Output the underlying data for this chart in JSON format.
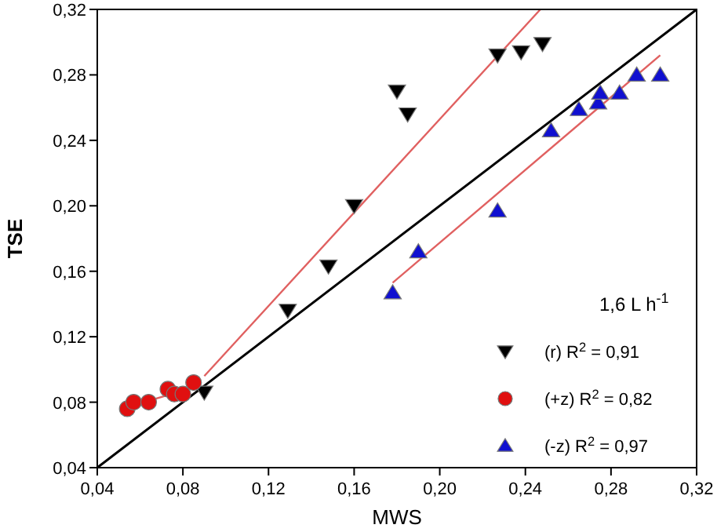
{
  "chart_data": {
    "type": "scatter",
    "xlabel": "MWS",
    "ylabel": "TSE",
    "legend_title": "1,6 L h$^{-1}$",
    "legend": "bottom right",
    "grid": false,
    "xlim": [
      0.04,
      0.32
    ],
    "ylim": [
      0.04,
      0.32
    ],
    "xticks": [
      {
        "value": 0.04,
        "label": "0,04"
      },
      {
        "value": 0.08,
        "label": "0,08"
      },
      {
        "value": 0.12,
        "label": "0,12"
      },
      {
        "value": 0.16,
        "label": "0,16"
      },
      {
        "value": 0.2,
        "label": "0,20"
      },
      {
        "value": 0.24,
        "label": "0,24"
      },
      {
        "value": 0.28,
        "label": "0,28"
      },
      {
        "value": 0.32,
        "label": "0,32"
      }
    ],
    "yticks": [
      {
        "value": 0.04,
        "label": "0,04"
      },
      {
        "value": 0.08,
        "label": "0,08"
      },
      {
        "value": 0.12,
        "label": "0,12"
      },
      {
        "value": 0.16,
        "label": "0,16"
      },
      {
        "value": 0.2,
        "label": "0,20"
      },
      {
        "value": 0.24,
        "label": "0,24"
      },
      {
        "value": 0.28,
        "label": "0,28"
      },
      {
        "value": 0.32,
        "label": "0,32"
      }
    ],
    "series": [
      {
        "name": "(r) R$^{2}$ = 0,91",
        "color": "#000000",
        "marker": "triangle-down",
        "x": [
          0.09,
          0.129,
          0.148,
          0.16,
          0.18,
          0.185,
          0.227,
          0.238,
          0.248
        ],
        "values": [
          0.086,
          0.136,
          0.163,
          0.2,
          0.27,
          0.256,
          0.292,
          0.294,
          0.299
        ]
      },
      {
        "name": "(+z) R$^{2}$ = 0,82",
        "color": "#e01010",
        "marker": "circle",
        "x": [
          0.054,
          0.057,
          0.064,
          0.073,
          0.076,
          0.08,
          0.085
        ],
        "values": [
          0.076,
          0.08,
          0.08,
          0.088,
          0.085,
          0.085,
          0.092
        ]
      },
      {
        "name": "(-z) R$^{2}$ = 0,97",
        "color": "#1010d0",
        "marker": "triangle",
        "x": [
          0.178,
          0.19,
          0.227,
          0.252,
          0.265,
          0.274,
          0.275,
          0.284,
          0.292,
          0.303
        ],
        "values": [
          0.147,
          0.172,
          0.197,
          0.246,
          0.259,
          0.263,
          0.269,
          0.269,
          0.28,
          0.28
        ]
      },
      {
        "type": "line",
        "color": "#000000",
        "x": [
          0.04,
          0.32
        ],
        "values": [
          0.04,
          0.32
        ]
      },
      {
        "type": "line",
        "color": "#e06060",
        "x": [
          0.09,
          0.247
        ],
        "values": [
          0.096,
          0.32
        ]
      },
      {
        "type": "line",
        "color": "#e06060",
        "x": [
          0.054,
          0.085
        ],
        "values": [
          0.077,
          0.089
        ]
      },
      {
        "type": "line",
        "color": "#e06060",
        "x": [
          0.178,
          0.303
        ],
        "values": [
          0.153,
          0.292
        ]
      }
    ]
  }
}
